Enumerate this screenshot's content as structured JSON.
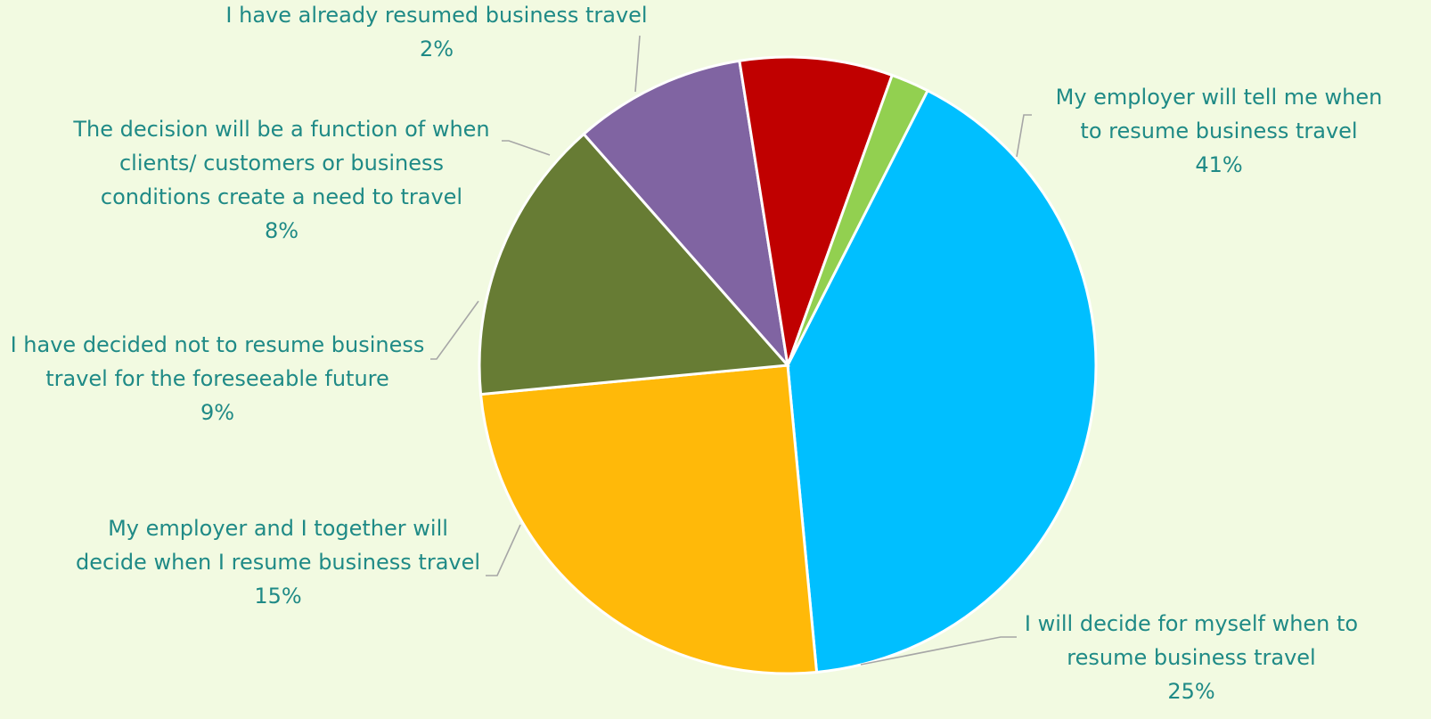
{
  "chart_data": {
    "type": "pie",
    "colors": {
      "background": "#f2fae1",
      "label_text": "#1f8a86",
      "leader_line": "#a6a6a6",
      "slice_border": "#ffffff"
    },
    "slices": [
      {
        "label_lines": [
          "My employer will tell me when",
          "to resume business travel"
        ],
        "value_label": "41%",
        "value": 41,
        "color": "#00bfff"
      },
      {
        "label_lines": [
          "I will decide for myself when to",
          "resume business travel"
        ],
        "value_label": "25%",
        "value": 25,
        "color": "#ffb909"
      },
      {
        "label_lines": [
          "My employer and I together will",
          "decide when I resume business travel"
        ],
        "value_label": "15%",
        "value": 15,
        "color": "#677c34"
      },
      {
        "label_lines": [
          "I have decided not to resume business",
          "travel for the foreseeable future"
        ],
        "value_label": "9%",
        "value": 9,
        "color": "#8064a2"
      },
      {
        "label_lines": [
          "The decision will be a function of when",
          "clients/ customers or business",
          "conditions create a need to travel"
        ],
        "value_label": "8%",
        "value": 8,
        "color": "#c00000"
      },
      {
        "label_lines": [
          "I have already resumed business travel"
        ],
        "value_label": "2%",
        "value": 2,
        "color": "#92d050"
      }
    ]
  }
}
